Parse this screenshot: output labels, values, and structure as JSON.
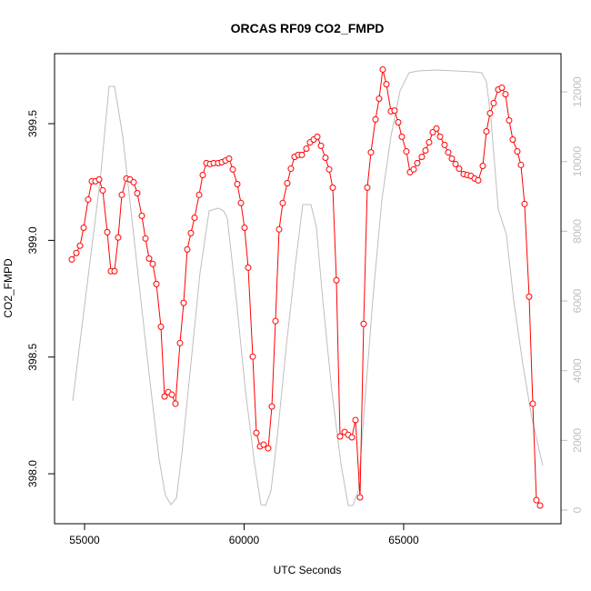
{
  "chart_data": {
    "type": "line",
    "title": "ORCAS RF09 CO2_FMPD",
    "x_label": "UTC Seconds",
    "y_label": "CO2_FMPD",
    "xlim": [
      54060,
      69930
    ],
    "ylim": [
      397.786,
      399.8
    ],
    "y2lim": [
      -391,
      13096
    ],
    "xticks": [
      55000,
      60000,
      65000
    ],
    "yticks": [
      {
        "value": 398,
        "label": "398.0"
      },
      398.5,
      {
        "value": 399,
        "label": "399.0"
      },
      399.5
    ],
    "y2ticks": [
      0,
      2000,
      4000,
      6000,
      8000,
      10000,
      12000
    ],
    "series": [
      {
        "color": "#ff0000",
        "markers": true,
        "x": [
          54601,
          54744,
          54858,
          54972,
          55114,
          55228,
          55342,
          55456,
          55570,
          55712,
          55826,
          55940,
          56054,
          56168,
          56311,
          56424,
          56539,
          56652,
          56795,
          56909,
          57023,
          57137,
          57251,
          57393,
          57507,
          57621,
          57735,
          57849,
          57991,
          58105,
          58219,
          58333,
          58447,
          58590,
          58704,
          58818,
          58932,
          59046,
          59188,
          59302,
          59416,
          59530,
          59644,
          59786,
          59900,
          60014,
          60128,
          60271,
          60385,
          60499,
          60613,
          60755,
          60869,
          60983,
          61097,
          61211,
          61353,
          61467,
          61581,
          61695,
          61809,
          61952,
          62066,
          62180,
          62294,
          62408,
          62550,
          62664,
          62778,
          62892,
          63006,
          63148,
          63262,
          63376,
          63490,
          63632,
          63746,
          63860,
          63974,
          64117,
          64231,
          64345,
          64459,
          64601,
          64715,
          64829,
          64943,
          65085,
          65199,
          65313,
          65427,
          65570,
          65683,
          65797,
          65911,
          66026,
          66140,
          66282,
          66396,
          66510,
          66624,
          66738,
          66880,
          66994,
          67108,
          67222,
          67336,
          67479,
          67593,
          67707,
          67821,
          67963,
          68077,
          68191,
          68305,
          68419,
          68561,
          68675,
          68789,
          68932,
          69046,
          69160,
          69274
        ],
        "values": [
          398.918,
          398.946,
          398.977,
          399.054,
          399.175,
          399.253,
          399.253,
          399.261,
          399.214,
          399.035,
          398.868,
          398.868,
          399.012,
          399.195,
          399.265,
          399.261,
          399.249,
          399.202,
          399.105,
          399.008,
          398.922,
          398.899,
          398.813,
          398.63,
          398.331,
          398.35,
          398.339,
          398.3,
          398.56,
          398.732,
          398.961,
          399.031,
          399.097,
          399.195,
          399.28,
          399.331,
          399.327,
          399.331,
          399.331,
          399.335,
          399.342,
          399.35,
          399.304,
          399.241,
          399.16,
          399.054,
          398.883,
          398.502,
          398.175,
          398.117,
          398.125,
          398.109,
          398.288,
          398.654,
          399.047,
          399.16,
          399.245,
          399.307,
          399.358,
          399.366,
          399.366,
          399.393,
          399.42,
          399.432,
          399.444,
          399.405,
          399.354,
          399.304,
          399.226,
          398.829,
          398.16,
          398.179,
          398.167,
          398.156,
          398.23,
          397.899,
          398.642,
          399.226,
          399.377,
          399.518,
          399.607,
          399.732,
          399.669,
          399.553,
          399.556,
          399.506,
          399.444,
          399.381,
          399.292,
          399.304,
          399.331,
          399.358,
          399.385,
          399.42,
          399.463,
          399.479,
          399.444,
          399.409,
          399.377,
          399.35,
          399.327,
          399.307,
          399.284,
          399.28,
          399.276,
          399.265,
          399.257,
          399.319,
          399.467,
          399.545,
          399.588,
          399.646,
          399.654,
          399.626,
          399.514,
          399.432,
          399.381,
          399.323,
          399.156,
          398.759,
          398.3,
          397.887,
          397.864
        ]
      },
      {
        "color": "#bebebe",
        "axis": "y2",
        "markers": false,
        "x": [
          54630,
          54915,
          55199,
          55484,
          55769,
          55940,
          56197,
          56481,
          56766,
          57051,
          57336,
          57535,
          57707,
          57877,
          58048,
          58333,
          58618,
          58903,
          59188,
          59359,
          59473,
          59758,
          60043,
          60328,
          60527,
          60670,
          60841,
          61040,
          61325,
          61610,
          61838,
          62094,
          62265,
          62464,
          62749,
          63034,
          63262,
          63405,
          63575,
          63746,
          64031,
          64316,
          64601,
          64886,
          65171,
          65456,
          66026,
          66595,
          67165,
          67450,
          67593,
          67735,
          67963,
          68220,
          68447,
          68732,
          69017,
          69359
        ],
        "values": [
          3131,
          5244,
          7331,
          9418,
          12157,
          12157,
          10722,
          8375,
          6026,
          3679,
          1461,
          418,
          157,
          339,
          1591,
          4200,
          6809,
          8583,
          8662,
          8583,
          8375,
          6026,
          3418,
          1331,
          157,
          130,
          548,
          2113,
          4722,
          7070,
          8766,
          8766,
          8114,
          6026,
          3418,
          1331,
          130,
          130,
          548,
          2635,
          6026,
          8896,
          10722,
          12027,
          12549,
          12601,
          12627,
          12601,
          12575,
          12549,
          12288,
          11244,
          8635,
          7905,
          6026,
          4200,
          2635,
          1278
        ]
      }
    ]
  }
}
